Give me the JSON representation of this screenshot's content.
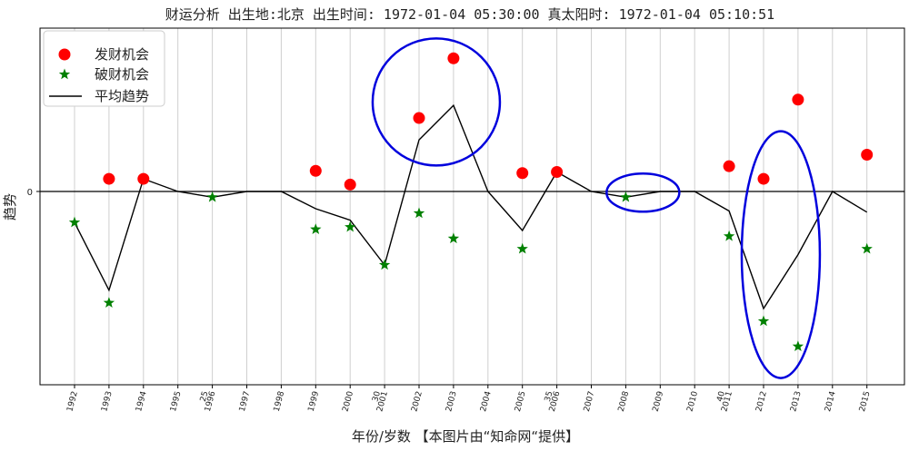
{
  "chart_data": {
    "type": "scatter",
    "title": "财运分析 出生地:北京  出生时间: 1972-01-04 05:30:00 真太阳时: 1972-01-04 05:10:51",
    "xlabel": "年份/岁数 【本图片由“知命网“提供】",
    "ylabel": "趋势",
    "ylim": [
      -1.6,
      1.35
    ],
    "y_ticks": [
      0
    ],
    "y_tick_labels": [
      "0"
    ],
    "categories": [
      "1992",
      "1993",
      "1994",
      "1995",
      "1996",
      "1997",
      "1998",
      "1999",
      "2000",
      "2001",
      "2002",
      "2003",
      "2004",
      "2005",
      "2006",
      "2007",
      "2008",
      "2009",
      "2010",
      "2011",
      "2012",
      "2013",
      "2014",
      "2015"
    ],
    "age_labels": {
      "1996": "25",
      "2001": "30",
      "2006": "35",
      "2011": "40"
    },
    "grid": "vertical",
    "legend_position": "top-left",
    "series": [
      {
        "name": "发财机会",
        "marker": "circle",
        "color": "#ff0000",
        "points": [
          {
            "x": "1993",
            "y": 0.11
          },
          {
            "x": "1994",
            "y": 0.11
          },
          {
            "x": "1999",
            "y": 0.18
          },
          {
            "x": "2000",
            "y": 0.06
          },
          {
            "x": "2002",
            "y": 0.64
          },
          {
            "x": "2003",
            "y": 1.16
          },
          {
            "x": "2005",
            "y": 0.16
          },
          {
            "x": "2006",
            "y": 0.17
          },
          {
            "x": "2011",
            "y": 0.22
          },
          {
            "x": "2012",
            "y": 0.11
          },
          {
            "x": "2013",
            "y": 0.8
          },
          {
            "x": "2015",
            "y": 0.32
          }
        ]
      },
      {
        "name": "破财机会",
        "marker": "star",
        "color": "#008000",
        "points": [
          {
            "x": "1992",
            "y": -0.27
          },
          {
            "x": "1993",
            "y": -0.97
          },
          {
            "x": "1996",
            "y": -0.05
          },
          {
            "x": "1999",
            "y": -0.33
          },
          {
            "x": "2000",
            "y": -0.31
          },
          {
            "x": "2001",
            "y": -0.64
          },
          {
            "x": "2002",
            "y": -0.19
          },
          {
            "x": "2003",
            "y": -0.41
          },
          {
            "x": "2005",
            "y": -0.5
          },
          {
            "x": "2008",
            "y": -0.05
          },
          {
            "x": "2011",
            "y": -0.39
          },
          {
            "x": "2012",
            "y": -1.13
          },
          {
            "x": "2013",
            "y": -1.35
          },
          {
            "x": "2015",
            "y": -0.5
          }
        ]
      },
      {
        "name": "平均趋势",
        "marker": "line",
        "color": "#000000",
        "values": [
          -0.27,
          -0.86,
          0.11,
          0.0,
          -0.05,
          0.0,
          0.0,
          -0.15,
          -0.25,
          -0.64,
          0.45,
          0.75,
          0.0,
          -0.34,
          0.17,
          0.0,
          -0.05,
          0.0,
          0.0,
          -0.17,
          -1.02,
          -0.55,
          0.0,
          -0.18
        ]
      }
    ],
    "reference_line_y": 0,
    "highlights": [
      {
        "label": "circle",
        "center_x": "2002.5",
        "center_y": 0.78,
        "color": "#0000dd"
      },
      {
        "label": "ellipse",
        "center_x": "2008.5",
        "center_y": -0.01,
        "color": "#0000dd"
      },
      {
        "label": "ellipse",
        "center_x": "2012.5",
        "center_y": -0.55,
        "color": "#0000dd"
      }
    ]
  }
}
